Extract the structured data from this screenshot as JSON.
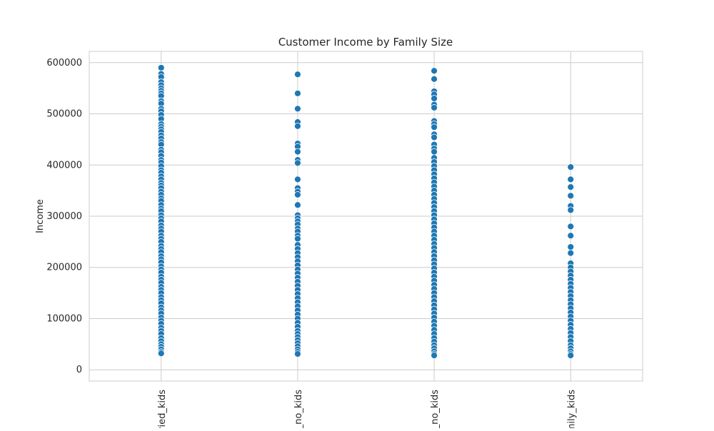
{
  "chart_data": {
    "type": "scatter",
    "title": "Customer Income by Family Size",
    "xlabel": "",
    "ylabel": "Income",
    "categories": [
      "ried_kids",
      "_no_kids",
      "_no_kids",
      "mily_kids"
    ],
    "ylim": [
      -22000,
      622000
    ],
    "yticks": [
      0,
      100000,
      200000,
      300000,
      400000,
      500000,
      600000
    ],
    "grid": true,
    "marker_color": "#1f77b4",
    "series": [
      {
        "category": "ried_kids",
        "values": [
          590000,
          578000,
          572000,
          562000,
          556000,
          550000,
          545000,
          540000,
          535000,
          525000,
          520000,
          510000,
          505000,
          498000,
          490000,
          480000,
          475000,
          470000,
          465000,
          458000,
          452000,
          445000,
          440000,
          430000,
          425000,
          418000,
          410000,
          405000,
          398000,
          390000,
          385000,
          378000,
          372000,
          365000,
          360000,
          355000,
          348000,
          342000,
          335000,
          330000,
          322000,
          315000,
          310000,
          302000,
          296000,
          290000,
          282000,
          276000,
          270000,
          262000,
          256000,
          250000,
          242000,
          236000,
          230000,
          222000,
          216000,
          210000,
          202000,
          196000,
          190000,
          182000,
          176000,
          170000,
          162000,
          156000,
          150000,
          142000,
          136000,
          130000,
          122000,
          116000,
          110000,
          102000,
          96000,
          90000,
          82000,
          76000,
          70000,
          62000,
          56000,
          50000,
          45000,
          40000,
          35000,
          32000
        ]
      },
      {
        "category": "_no_kids",
        "values": [
          577000,
          540000,
          510000,
          484000,
          476000,
          442000,
          436000,
          426000,
          410000,
          404000,
          372000,
          355000,
          348000,
          342000,
          322000,
          302000,
          296000,
          290000,
          284000,
          276000,
          270000,
          262000,
          256000,
          244000,
          236000,
          228000,
          220000,
          212000,
          204000,
          196000,
          188000,
          180000,
          172000,
          164000,
          156000,
          148000,
          140000,
          132000,
          124000,
          116000,
          108000,
          100000,
          92000,
          84000,
          76000,
          70000,
          64000,
          58000,
          52000,
          46000,
          40000,
          35000,
          31000
        ]
      },
      {
        "category": "_no_kids",
        "values": [
          584000,
          568000,
          544000,
          538000,
          530000,
          518000,
          512000,
          486000,
          480000,
          474000,
          460000,
          454000,
          440000,
          432000,
          426000,
          414000,
          406000,
          398000,
          390000,
          382000,
          374000,
          366000,
          358000,
          350000,
          342000,
          334000,
          326000,
          318000,
          310000,
          302000,
          294000,
          286000,
          278000,
          270000,
          262000,
          254000,
          246000,
          238000,
          230000,
          222000,
          214000,
          206000,
          198000,
          190000,
          182000,
          174000,
          166000,
          158000,
          150000,
          142000,
          134000,
          126000,
          118000,
          110000,
          102000,
          94000,
          86000,
          78000,
          70000,
          62000,
          55000,
          48000,
          42000,
          36000,
          31000,
          28000
        ]
      },
      {
        "category": "mily_kids",
        "values": [
          396000,
          372000,
          357000,
          340000,
          320000,
          312000,
          280000,
          262000,
          240000,
          228000,
          208000,
          200000,
          192000,
          184000,
          176000,
          168000,
          160000,
          152000,
          144000,
          136000,
          128000,
          120000,
          112000,
          104000,
          96000,
          88000,
          80000,
          72000,
          64000,
          56000,
          48000,
          42000,
          36000,
          31000,
          28000
        ]
      }
    ]
  }
}
